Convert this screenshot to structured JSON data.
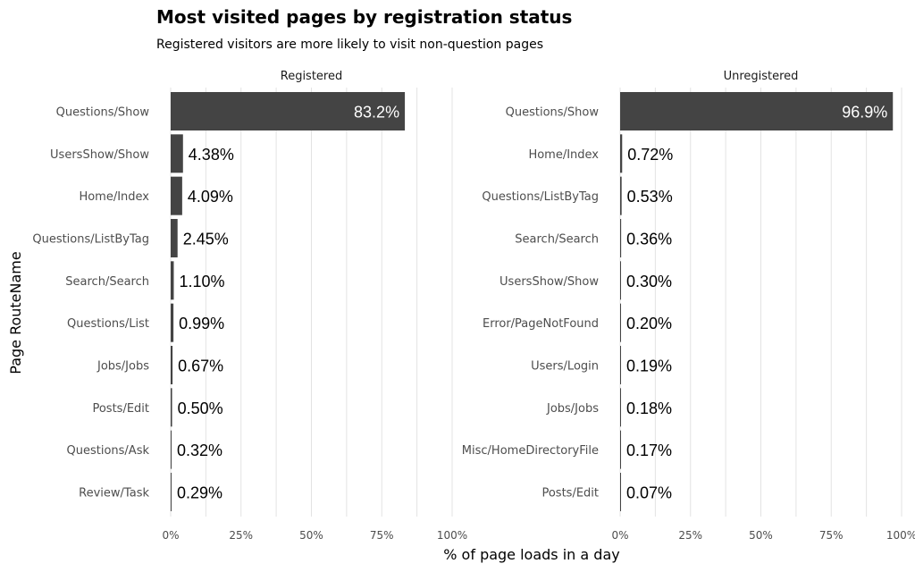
{
  "chart_data": {
    "type": "bar",
    "orientation": "horizontal",
    "title": "Most visited pages by registration status",
    "subtitle": "Registered visitors are more likely to visit non-question pages",
    "xlabel": "% of page loads in a day",
    "ylabel": "Page RouteName",
    "xlim": [
      0,
      1
    ],
    "x_ticks": [
      "0%",
      "25%",
      "50%",
      "75%",
      "100%"
    ],
    "bar_color": "#444444",
    "grid": true,
    "facets": [
      {
        "name": "Registered",
        "categories": [
          "Questions/Show",
          "UsersShow/Show",
          "Home/Index",
          "Questions/ListByTag",
          "Search/Search",
          "Questions/List",
          "Jobs/Jobs",
          "Posts/Edit",
          "Questions/Ask",
          "Review/Task"
        ],
        "values": [
          0.832,
          0.0438,
          0.0409,
          0.0245,
          0.011,
          0.0099,
          0.0067,
          0.005,
          0.0032,
          0.0029
        ],
        "labels": [
          "83.2%",
          "4.38%",
          "4.09%",
          "2.45%",
          "1.10%",
          "0.99%",
          "0.67%",
          "0.50%",
          "0.32%",
          "0.29%"
        ]
      },
      {
        "name": "Unregistered",
        "categories": [
          "Questions/Show",
          "Home/Index",
          "Questions/ListByTag",
          "Search/Search",
          "UsersShow/Show",
          "Error/PageNotFound",
          "Users/Login",
          "Jobs/Jobs",
          "Misc/HomeDirectoryFile",
          "Posts/Edit"
        ],
        "values": [
          0.969,
          0.0072,
          0.0053,
          0.0036,
          0.003,
          0.002,
          0.0019,
          0.0018,
          0.0017,
          0.0007
        ],
        "labels": [
          "96.9%",
          "0.72%",
          "0.53%",
          "0.36%",
          "0.30%",
          "0.20%",
          "0.19%",
          "0.18%",
          "0.17%",
          "0.07%"
        ]
      }
    ]
  }
}
